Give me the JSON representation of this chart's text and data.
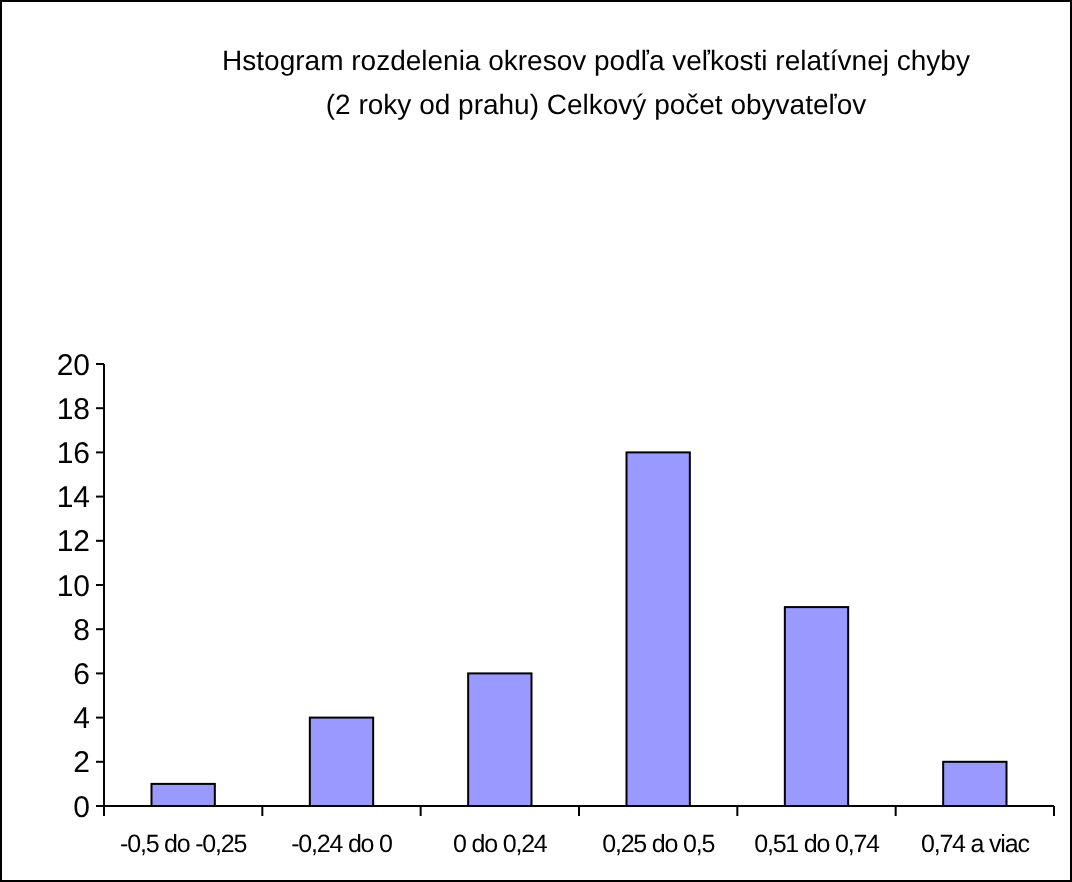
{
  "chart_data": {
    "type": "bar",
    "title": "Hstogram rozdelenia okresov podľa veľkosti relatívnej chyby (2 roky od prahu) Celkový počet obyvateľov",
    "categories": [
      "-0,5 do -0,25",
      "-0,24 do 0",
      "0 do 0,24",
      "0,25 do 0,5",
      "0,51 do 0,74",
      "0,74 a viac"
    ],
    "values": [
      1,
      4,
      6,
      16,
      9,
      2
    ],
    "color": "#9999ff",
    "ylim": [
      0,
      20
    ],
    "yticks": [
      0,
      2,
      4,
      6,
      8,
      10,
      12,
      14,
      16,
      18,
      20
    ],
    "grid": false
  }
}
